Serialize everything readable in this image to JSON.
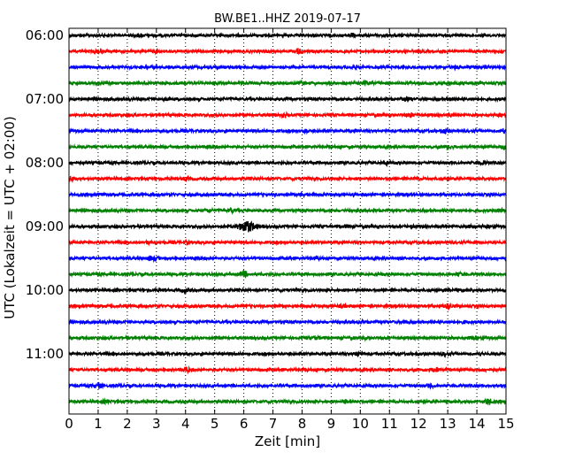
{
  "chart_data": {
    "type": "line",
    "title": "BW.BE1..HHZ 2019-07-17",
    "xlabel": "Zeit  [min]",
    "ylabel": "UTC (Lokalzeit = UTC + 02:00)",
    "xlim": [
      0,
      15
    ],
    "x_ticks": [
      "0",
      "1",
      "2",
      "3",
      "4",
      "5",
      "6",
      "7",
      "8",
      "9",
      "10",
      "11",
      "12",
      "13",
      "14",
      "15"
    ],
    "y_tick_labels": [
      "06:00",
      "07:00",
      "08:00",
      "09:00",
      "10:00",
      "11:00"
    ],
    "grid": "vertical dotted",
    "legend": "none",
    "color_cycle": [
      "#000000",
      "#ff0000",
      "#0000ff",
      "#008000"
    ],
    "traces": [
      {
        "start": "06:00",
        "bursts": [
          {
            "x": 2.4,
            "a": 0.35
          },
          {
            "x": 9.7,
            "a": 0.55
          }
        ]
      },
      {
        "start": "06:15",
        "bursts": [
          {
            "x": 1.0,
            "a": 0.35
          },
          {
            "x": 3.0,
            "a": 0.3
          },
          {
            "x": 7.9,
            "a": 0.7
          },
          {
            "x": 12.9,
            "a": 0.25
          }
        ]
      },
      {
        "start": "06:30",
        "bursts": [
          {
            "x": 9.8,
            "a": 0.3
          },
          {
            "x": 13.3,
            "a": 0.35
          },
          {
            "x": 13.9,
            "a": 0.4
          }
        ]
      },
      {
        "start": "06:45",
        "bursts": [
          {
            "x": 5.0,
            "a": 0.3
          },
          {
            "x": 8.0,
            "a": 0.35
          },
          {
            "x": 10.2,
            "a": 0.5
          }
        ]
      },
      {
        "start": "07:00",
        "bursts": [
          {
            "x": 3.3,
            "a": 0.3
          },
          {
            "x": 11.6,
            "a": 0.7
          },
          {
            "x": 13.1,
            "a": 0.3
          }
        ]
      },
      {
        "start": "07:15",
        "bursts": [
          {
            "x": 7.4,
            "a": 0.45
          },
          {
            "x": 11.7,
            "a": 0.6
          },
          {
            "x": 13.1,
            "a": 0.35
          }
        ]
      },
      {
        "start": "07:30",
        "bursts": [
          {
            "x": 8.1,
            "a": 0.45
          },
          {
            "x": 12.9,
            "a": 0.55
          },
          {
            "x": 14.9,
            "a": 0.6
          }
        ]
      },
      {
        "start": "07:45",
        "bursts": [
          {
            "x": 13.0,
            "a": 0.55
          },
          {
            "x": 14.9,
            "a": 0.6
          }
        ]
      },
      {
        "start": "08:00",
        "bursts": [
          {
            "x": 10.9,
            "a": 0.35
          },
          {
            "x": 14.2,
            "a": 0.4
          }
        ]
      },
      {
        "start": "08:15",
        "bursts": [
          {
            "x": 0.1,
            "a": 0.65
          },
          {
            "x": 4.0,
            "a": 0.35
          },
          {
            "x": 11.8,
            "a": 0.3
          }
        ]
      },
      {
        "start": "08:30",
        "bursts": [
          {
            "x": 4.9,
            "a": 0.3
          },
          {
            "x": 8.0,
            "a": 0.3
          }
        ]
      },
      {
        "start": "08:45",
        "bursts": [
          {
            "x": 4.8,
            "a": 0.45
          },
          {
            "x": 5.6,
            "a": 0.5
          },
          {
            "x": 14.8,
            "a": 0.45
          }
        ]
      },
      {
        "start": "09:00",
        "bursts": [
          {
            "x": 6.1,
            "a": 1.7
          },
          {
            "x": 9.5,
            "a": 0.35
          },
          {
            "x": 11.7,
            "a": 0.35
          },
          {
            "x": 13.8,
            "a": 0.35
          }
        ]
      },
      {
        "start": "09:15",
        "bursts": [
          {
            "x": 2.7,
            "a": 0.35
          },
          {
            "x": 4.0,
            "a": 0.35
          },
          {
            "x": 14.0,
            "a": 0.3
          }
        ]
      },
      {
        "start": "09:30",
        "bursts": [
          {
            "x": 2.8,
            "a": 0.45
          },
          {
            "x": 3.0,
            "a": 0.45
          },
          {
            "x": 8.5,
            "a": 0.3
          }
        ]
      },
      {
        "start": "09:45",
        "bursts": [
          {
            "x": 6.0,
            "a": 0.85
          },
          {
            "x": 13.4,
            "a": 0.3
          }
        ]
      },
      {
        "start": "10:00",
        "bursts": [
          {
            "x": 4.0,
            "a": 0.45
          },
          {
            "x": 13.0,
            "a": 0.45
          },
          {
            "x": 13.4,
            "a": 0.35
          }
        ]
      },
      {
        "start": "10:15",
        "bursts": [
          {
            "x": 9.4,
            "a": 0.45
          },
          {
            "x": 13.0,
            "a": 0.85
          }
        ]
      },
      {
        "start": "10:30",
        "bursts": [
          {
            "x": 10.0,
            "a": 0.3
          },
          {
            "x": 11.5,
            "a": 0.35
          },
          {
            "x": 13.6,
            "a": 0.3
          }
        ]
      },
      {
        "start": "10:45",
        "bursts": [
          {
            "x": 8.5,
            "a": 0.35
          },
          {
            "x": 10.2,
            "a": 0.3
          },
          {
            "x": 13.8,
            "a": 0.3
          }
        ]
      },
      {
        "start": "11:00",
        "bursts": [
          {
            "x": 9.9,
            "a": 0.45
          },
          {
            "x": 12.9,
            "a": 0.35
          },
          {
            "x": 14.1,
            "a": 0.35
          }
        ]
      },
      {
        "start": "11:15",
        "bursts": [
          {
            "x": 4.0,
            "a": 0.85
          },
          {
            "x": 12.6,
            "a": 0.6
          }
        ]
      },
      {
        "start": "11:30",
        "bursts": [
          {
            "x": 1.0,
            "a": 0.85
          },
          {
            "x": 12.4,
            "a": 0.45
          },
          {
            "x": 14.9,
            "a": 0.3
          }
        ]
      },
      {
        "start": "11:45",
        "bursts": [
          {
            "x": 1.3,
            "a": 0.4
          },
          {
            "x": 9.5,
            "a": 0.45
          },
          {
            "x": 14.4,
            "a": 0.85
          }
        ]
      }
    ]
  }
}
